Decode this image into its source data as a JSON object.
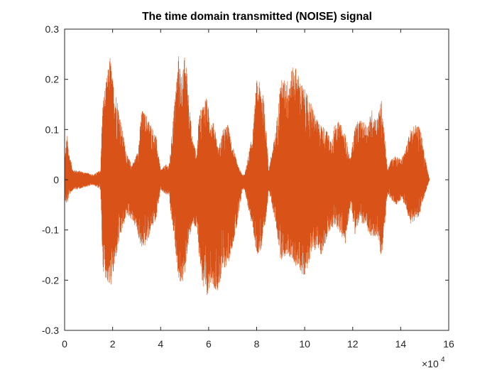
{
  "chart_data": {
    "type": "line",
    "title": "The time domain transmitted (NOISE) signal",
    "xlabel": "",
    "ylabel": "",
    "xlim": [
      0,
      16
    ],
    "ylim": [
      -0.3,
      0.3
    ],
    "x_exponent_label": {
      "base": "×10",
      "power": "4"
    },
    "x_ticks": [
      0,
      2,
      4,
      6,
      8,
      10,
      12,
      14,
      16
    ],
    "x_tick_labels": [
      "0",
      "2",
      "4",
      "6",
      "8",
      "10",
      "12",
      "14",
      "16"
    ],
    "y_ticks": [
      0.3,
      0.2,
      0.1,
      0,
      -0.1,
      -0.2,
      -0.3
    ],
    "y_tick_labels": [
      "0.3",
      "0.2",
      "0.1",
      "0",
      "-0.1",
      "-0.2",
      "-0.3"
    ],
    "grid": false,
    "line_color": "#D95319",
    "series": [
      {
        "x_units_note": "x values in units of 10^4 samples",
        "envelope": {
          "x": [
            0.0,
            0.1,
            0.2,
            0.35,
            0.6,
            0.9,
            1.2,
            1.5,
            1.55,
            1.6,
            1.75,
            1.9,
            2.0,
            2.2,
            2.4,
            2.6,
            2.8,
            3.0,
            3.1,
            3.2,
            3.4,
            3.6,
            3.8,
            4.0,
            4.2,
            4.35,
            4.4,
            4.6,
            4.75,
            4.9,
            5.0,
            5.1,
            5.3,
            5.5,
            5.6,
            5.75,
            5.9,
            6.0,
            6.1,
            6.25,
            6.4,
            6.6,
            6.8,
            7.0,
            7.2,
            7.4,
            7.5,
            7.7,
            7.85,
            8.0,
            8.2,
            8.35,
            8.5,
            8.8,
            9.0,
            9.3,
            9.45,
            9.6,
            9.8,
            9.9,
            10.0,
            10.1,
            10.3,
            10.5,
            10.7,
            10.9,
            11.1,
            11.3,
            11.5,
            11.7,
            11.9,
            12.1,
            12.3,
            12.6,
            12.8,
            13.0,
            13.2,
            13.45,
            13.6,
            13.8,
            14.0,
            14.2,
            14.4,
            14.6,
            14.8,
            15.0,
            15.2
          ],
          "upper": [
            0.04,
            0.09,
            0.05,
            0.02,
            0.018,
            0.014,
            0.01,
            0.02,
            0.11,
            0.16,
            0.2,
            0.25,
            0.2,
            0.16,
            0.1,
            0.05,
            0.03,
            0.05,
            0.08,
            0.14,
            0.13,
            0.11,
            0.09,
            0.02,
            0.03,
            0.03,
            0.05,
            0.17,
            0.25,
            0.2,
            0.25,
            0.22,
            0.09,
            0.05,
            0.13,
            0.15,
            0.17,
            0.14,
            0.12,
            0.11,
            0.06,
            0.1,
            0.11,
            0.07,
            0.03,
            0.01,
            0.01,
            0.06,
            0.1,
            0.2,
            0.19,
            0.14,
            0.02,
            0.1,
            0.2,
            0.2,
            0.22,
            0.23,
            0.2,
            0.19,
            0.18,
            0.17,
            0.15,
            0.12,
            0.11,
            0.1,
            0.08,
            0.12,
            0.11,
            0.09,
            0.04,
            0.11,
            0.12,
            0.11,
            0.14,
            0.12,
            0.16,
            0.02,
            0.04,
            0.05,
            0.04,
            0.06,
            0.1,
            0.11,
            0.11,
            0.05,
            0.0
          ],
          "lower": [
            -0.04,
            -0.05,
            -0.03,
            -0.02,
            -0.018,
            -0.014,
            -0.01,
            -0.02,
            -0.12,
            -0.18,
            -0.2,
            -0.22,
            -0.2,
            -0.14,
            -0.1,
            -0.07,
            -0.08,
            -0.1,
            -0.12,
            -0.14,
            -0.13,
            -0.1,
            -0.08,
            -0.02,
            -0.03,
            -0.03,
            -0.06,
            -0.13,
            -0.2,
            -0.21,
            -0.19,
            -0.15,
            -0.09,
            -0.1,
            -0.15,
            -0.21,
            -0.26,
            -0.22,
            -0.2,
            -0.22,
            -0.22,
            -0.18,
            -0.17,
            -0.13,
            -0.09,
            -0.02,
            -0.02,
            -0.07,
            -0.1,
            -0.15,
            -0.14,
            -0.1,
            -0.02,
            -0.09,
            -0.16,
            -0.15,
            -0.16,
            -0.17,
            -0.18,
            -0.19,
            -0.19,
            -0.18,
            -0.14,
            -0.14,
            -0.15,
            -0.12,
            -0.1,
            -0.09,
            -0.11,
            -0.13,
            -0.05,
            -0.11,
            -0.08,
            -0.1,
            -0.12,
            -0.11,
            -0.16,
            -0.03,
            -0.04,
            -0.05,
            -0.04,
            -0.05,
            -0.09,
            -0.08,
            -0.07,
            -0.03,
            0.0
          ]
        }
      }
    ]
  }
}
